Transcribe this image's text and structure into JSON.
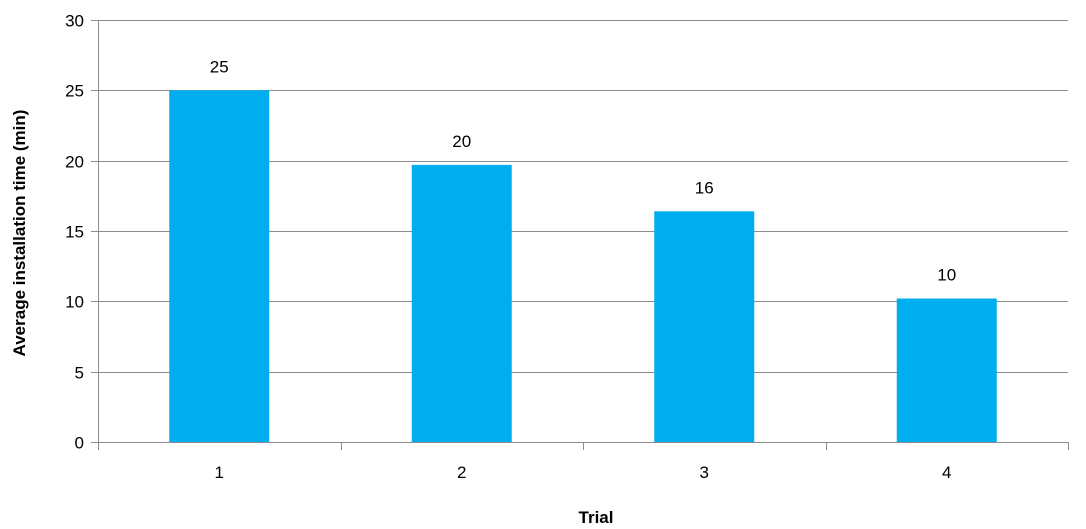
{
  "chart_data": {
    "type": "bar",
    "categories": [
      "1",
      "2",
      "3",
      "4"
    ],
    "values": [
      25,
      19.7,
      16.4,
      10.2
    ],
    "data_labels": [
      "25",
      "20",
      "16",
      "10"
    ],
    "xlabel": "Trial",
    "ylabel": "Average installation time (min)",
    "ylim": [
      0,
      30
    ],
    "yticks": [
      "0",
      "5",
      "10",
      "15",
      "20",
      "25",
      "30"
    ],
    "ytick_values": [
      0,
      5,
      10,
      15,
      20,
      25,
      30
    ],
    "grid": true,
    "legend": "none",
    "bar_color": "#00AEEF"
  }
}
